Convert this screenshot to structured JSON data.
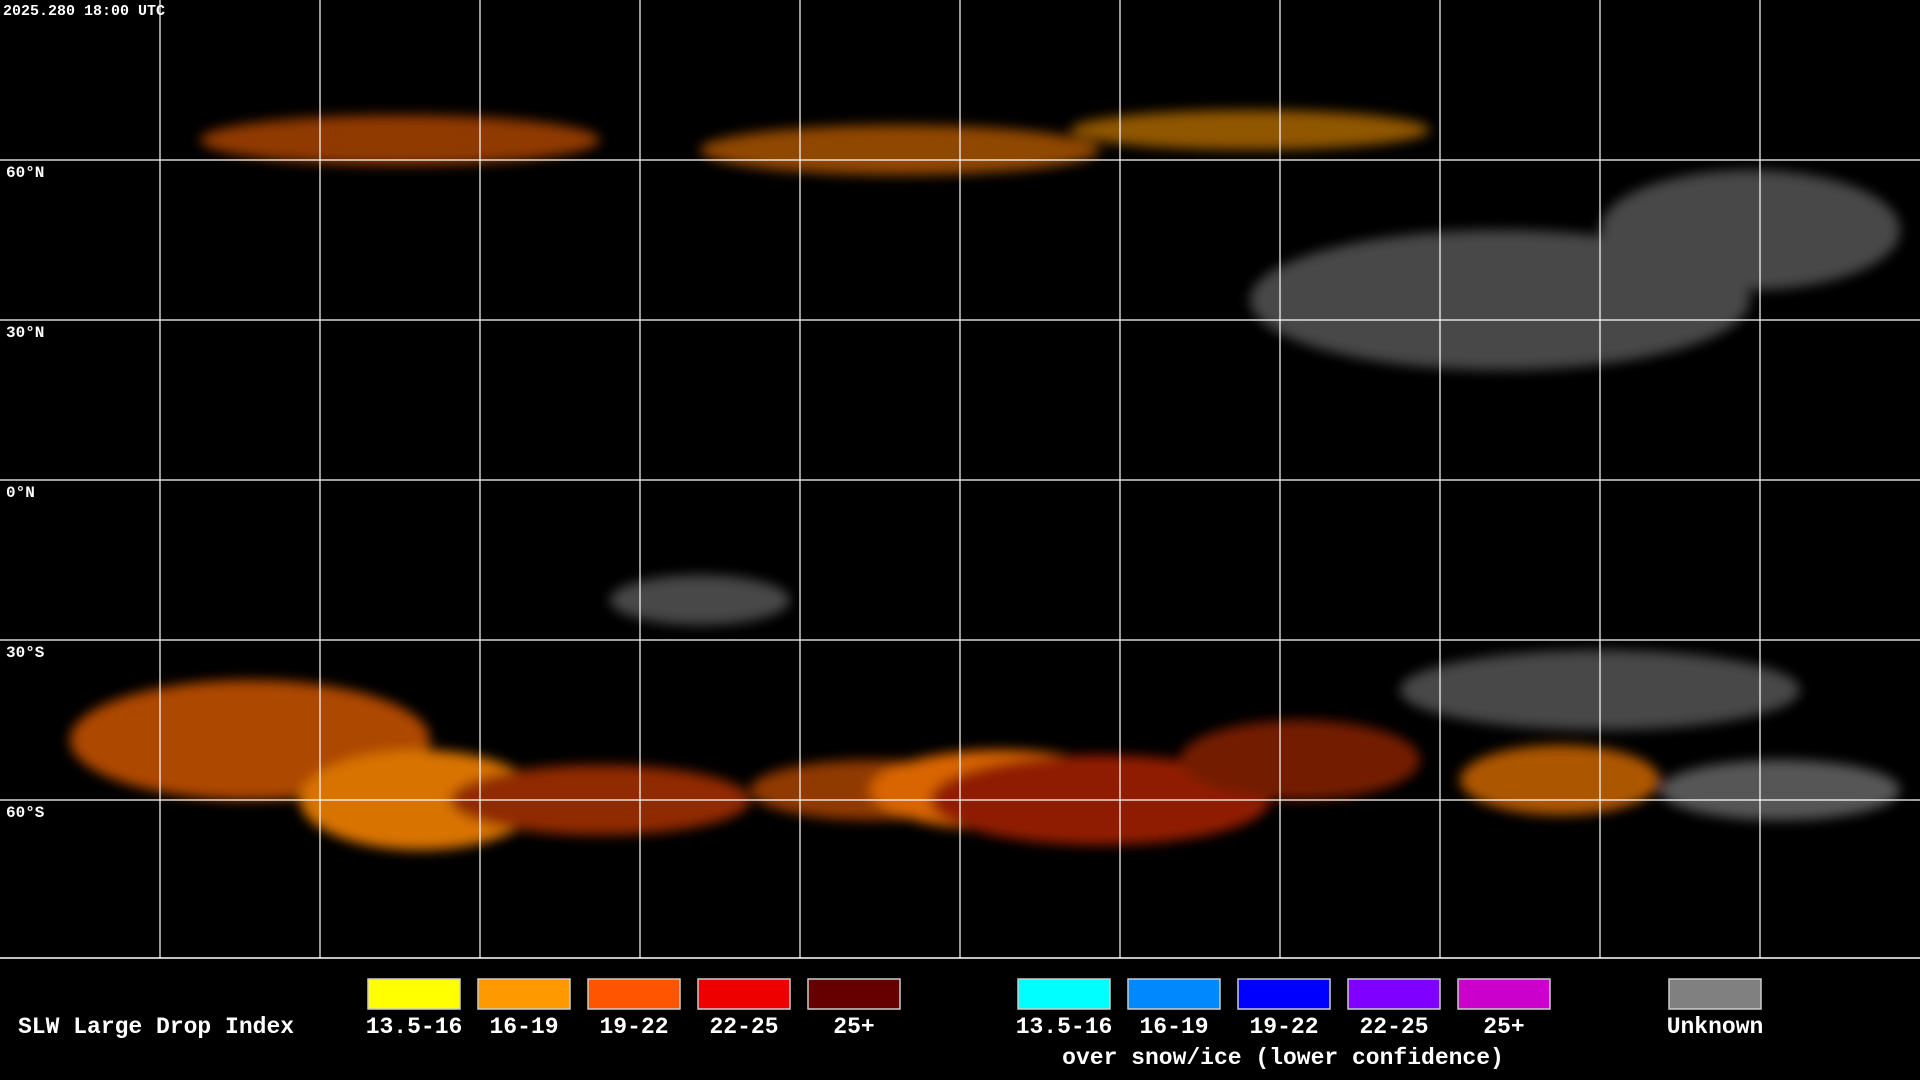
{
  "header": {
    "timestamp": "2025.280 18:00 UTC"
  },
  "map": {
    "latitude_labels": [
      "60°N",
      "30°N",
      "0°N",
      "30°S",
      "60°S"
    ]
  },
  "legend": {
    "title": "SLW Large Drop Index",
    "classes": [
      {
        "label": "13.5-16",
        "color": "#ffff00"
      },
      {
        "label": "16-19",
        "color": "#ff9900"
      },
      {
        "label": "19-22",
        "color": "#ff5500"
      },
      {
        "label": "22-25",
        "color": "#ee0000"
      },
      {
        "label": "25+",
        "color": "#660000"
      }
    ],
    "snow_ice_classes": [
      {
        "label": "13.5-16",
        "color": "#00ffff"
      },
      {
        "label": "16-19",
        "color": "#0088ff"
      },
      {
        "label": "19-22",
        "color": "#0000ff"
      },
      {
        "label": "22-25",
        "color": "#8000ff"
      },
      {
        "label": "25+",
        "color": "#cc00cc"
      }
    ],
    "snow_ice_note": "over snow/ice (lower confidence)",
    "unknown": {
      "label": "Unknown",
      "color": "#808080"
    }
  }
}
